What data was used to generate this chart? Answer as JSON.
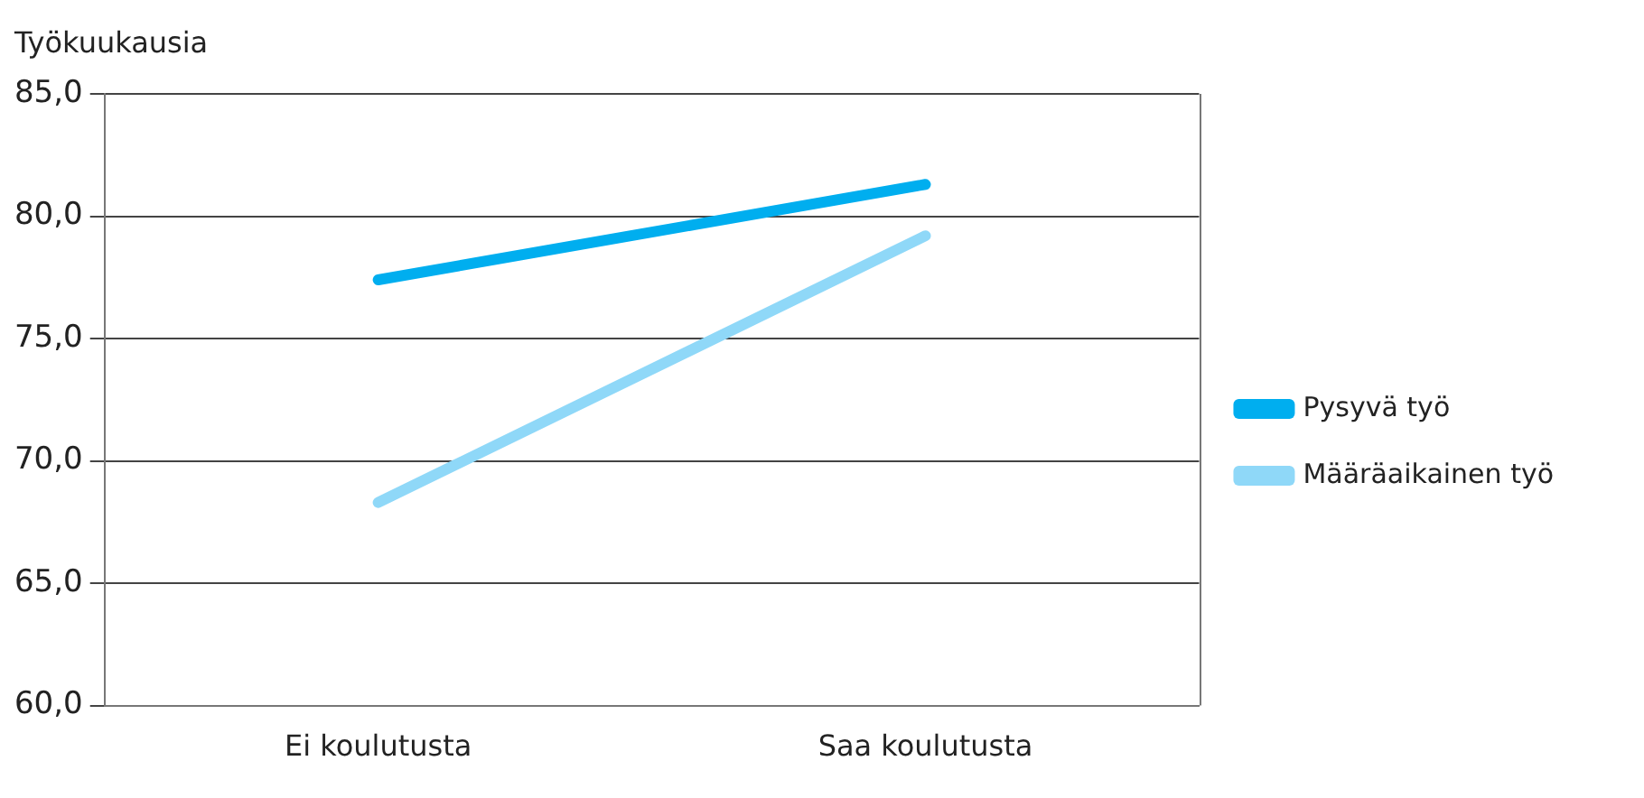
{
  "chart_data": {
    "type": "line",
    "ylabel": "Työkuukausia",
    "categories": [
      "Ei koulutusta",
      "Saa koulutusta"
    ],
    "series": [
      {
        "name": "Pysyvä työ",
        "color": "#00aeef",
        "values": [
          77.4,
          81.3
        ]
      },
      {
        "name": "Määräaikainen työ",
        "color": "#8fd8f8",
        "values": [
          68.3,
          79.2
        ]
      }
    ],
    "ylim": [
      60,
      85
    ],
    "yticks": [
      {
        "value": 60,
        "label": "60,0"
      },
      {
        "value": 65,
        "label": "65,0"
      },
      {
        "value": 70,
        "label": "70,0"
      },
      {
        "value": 75,
        "label": "75,0"
      },
      {
        "value": 80,
        "label": "80,0"
      },
      {
        "value": 85,
        "label": "85,0"
      }
    ],
    "grid": "y",
    "legend": "right",
    "marker": "none",
    "line_style": "solid"
  }
}
